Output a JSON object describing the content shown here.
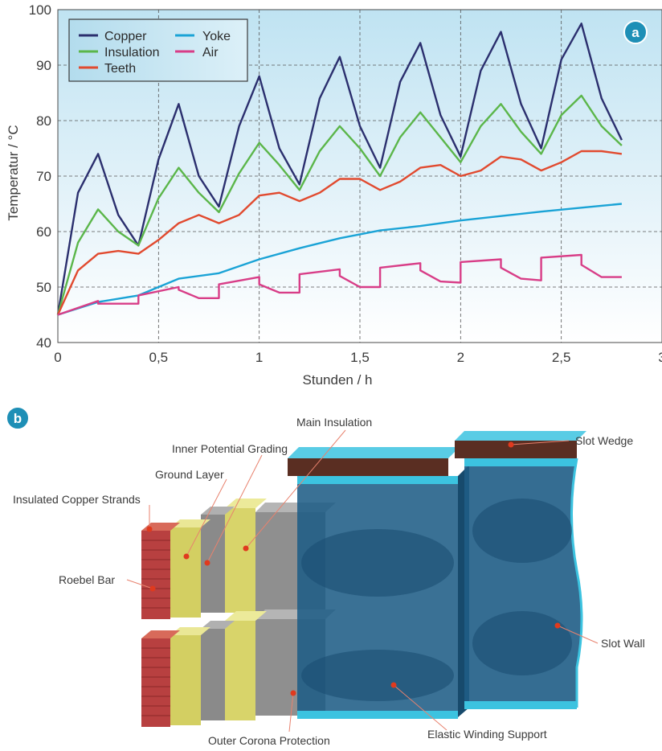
{
  "panel_a": {
    "badge": "a",
    "chart_data": {
      "type": "line",
      "xlabel": "Stunden / h",
      "ylabel": "Temperatur / °C",
      "xlim": [
        0,
        3
      ],
      "ylim": [
        40,
        100
      ],
      "xticks": [
        0,
        0.5,
        1,
        1.5,
        2,
        2.5,
        3
      ],
      "xtick_labels": [
        "0",
        "0,5",
        "1",
        "1,5",
        "2",
        "2,5",
        "3"
      ],
      "yticks": [
        40,
        50,
        60,
        70,
        80,
        90,
        100
      ],
      "ytick_labels": [
        "40",
        "50",
        "60",
        "70",
        "80",
        "90",
        "100"
      ],
      "grid": true,
      "legend_position": "top-left",
      "series": [
        {
          "name": "Copper",
          "color": "#2b2f6e",
          "x": [
            0,
            0.1,
            0.2,
            0.3,
            0.4,
            0.5,
            0.6,
            0.7,
            0.8,
            0.9,
            1.0,
            1.1,
            1.2,
            1.3,
            1.4,
            1.5,
            1.6,
            1.7,
            1.8,
            1.9,
            2.0,
            2.1,
            2.2,
            2.3,
            2.4,
            2.5,
            2.6,
            2.7,
            2.8
          ],
          "y": [
            45,
            67,
            74,
            63,
            57.5,
            73,
            83,
            70,
            64.5,
            79,
            88,
            75,
            68.5,
            84,
            91.5,
            79,
            71.5,
            87,
            94,
            81,
            73.5,
            89,
            96,
            83,
            75,
            91,
            97.5,
            84,
            76.5
          ]
        },
        {
          "name": "Insulation",
          "color": "#5bb64a",
          "x": [
            0,
            0.1,
            0.2,
            0.3,
            0.4,
            0.5,
            0.6,
            0.7,
            0.8,
            0.9,
            1.0,
            1.1,
            1.2,
            1.3,
            1.4,
            1.5,
            1.6,
            1.7,
            1.8,
            1.9,
            2.0,
            2.1,
            2.2,
            2.3,
            2.4,
            2.5,
            2.6,
            2.7,
            2.8
          ],
          "y": [
            45,
            58,
            64,
            60,
            57.5,
            66,
            71.5,
            67,
            63.5,
            70.5,
            76,
            72,
            67.5,
            74.5,
            79,
            75,
            70,
            77,
            81.5,
            77,
            72.5,
            79,
            83,
            78,
            74,
            81,
            84.5,
            79,
            75.5
          ]
        },
        {
          "name": "Teeth",
          "color": "#e14a2f",
          "x": [
            0,
            0.1,
            0.2,
            0.3,
            0.4,
            0.5,
            0.6,
            0.7,
            0.8,
            0.9,
            1.0,
            1.1,
            1.2,
            1.3,
            1.4,
            1.5,
            1.6,
            1.7,
            1.8,
            1.9,
            2.0,
            2.1,
            2.2,
            2.3,
            2.4,
            2.5,
            2.6,
            2.7,
            2.8
          ],
          "y": [
            45,
            53,
            56,
            56.5,
            56,
            58.5,
            61.5,
            63,
            61.5,
            63,
            66.5,
            67,
            65.5,
            67,
            69.5,
            69.5,
            67.5,
            69,
            71.5,
            72,
            70,
            71,
            73.5,
            73,
            71,
            72.5,
            74.5,
            74.5,
            74
          ]
        },
        {
          "name": "Yoke",
          "color": "#1aa3d6",
          "x": [
            0,
            0.2,
            0.4,
            0.6,
            0.8,
            1.0,
            1.2,
            1.4,
            1.6,
            1.8,
            2.0,
            2.2,
            2.4,
            2.6,
            2.8
          ],
          "y": [
            45,
            47.3,
            48.5,
            51.5,
            52.5,
            55,
            57,
            58.8,
            60.2,
            61,
            62,
            62.8,
            63.6,
            64.3,
            65
          ]
        },
        {
          "name": "Air",
          "color": "#d83d87",
          "x": [
            0,
            0.2,
            0.2,
            0.4,
            0.4,
            0.6,
            0.6,
            0.7,
            0.8,
            0.8,
            1.0,
            1.0,
            1.1,
            1.2,
            1.2,
            1.4,
            1.4,
            1.5,
            1.6,
            1.6,
            1.8,
            1.8,
            1.9,
            2.0,
            2.0,
            2.2,
            2.2,
            2.3,
            2.4,
            2.4,
            2.6,
            2.6,
            2.7,
            2.8
          ],
          "y": [
            45,
            47.5,
            47,
            47,
            48.5,
            50,
            49.5,
            48,
            48,
            50.5,
            51.8,
            50.5,
            49,
            49,
            52.3,
            53.2,
            52,
            50,
            50,
            53.5,
            54.3,
            53,
            51,
            50.8,
            54.5,
            55,
            53.5,
            51.5,
            51.2,
            55.3,
            55.8,
            54,
            51.8,
            51.8
          ]
        }
      ]
    }
  },
  "panel_b": {
    "badge": "b",
    "labels": {
      "main_insulation": "Main Insulation",
      "inner_potential_grading": "Inner Potential Grading",
      "ground_layer": "Ground Layer",
      "insulated_copper_strands": "Insulated Copper Strands",
      "roebel_bar": "Roebel Bar",
      "slot_wedge": "Slot Wedge",
      "slot_wall": "Slot Wall",
      "outer_corona_protection": "Outer Corona Protection",
      "elastic_winding_support": "Elastic Winding Support"
    },
    "colors": {
      "badge": "#1e8fb6",
      "copper": "#b84040",
      "yellow": "#d8d46a",
      "grey": "#8f8f8f",
      "slot_blue": "#1f5d86",
      "slot_edge": "#3cc3e0",
      "wedge": "#5a2e22",
      "callout_dot": "#e03a1e"
    }
  }
}
